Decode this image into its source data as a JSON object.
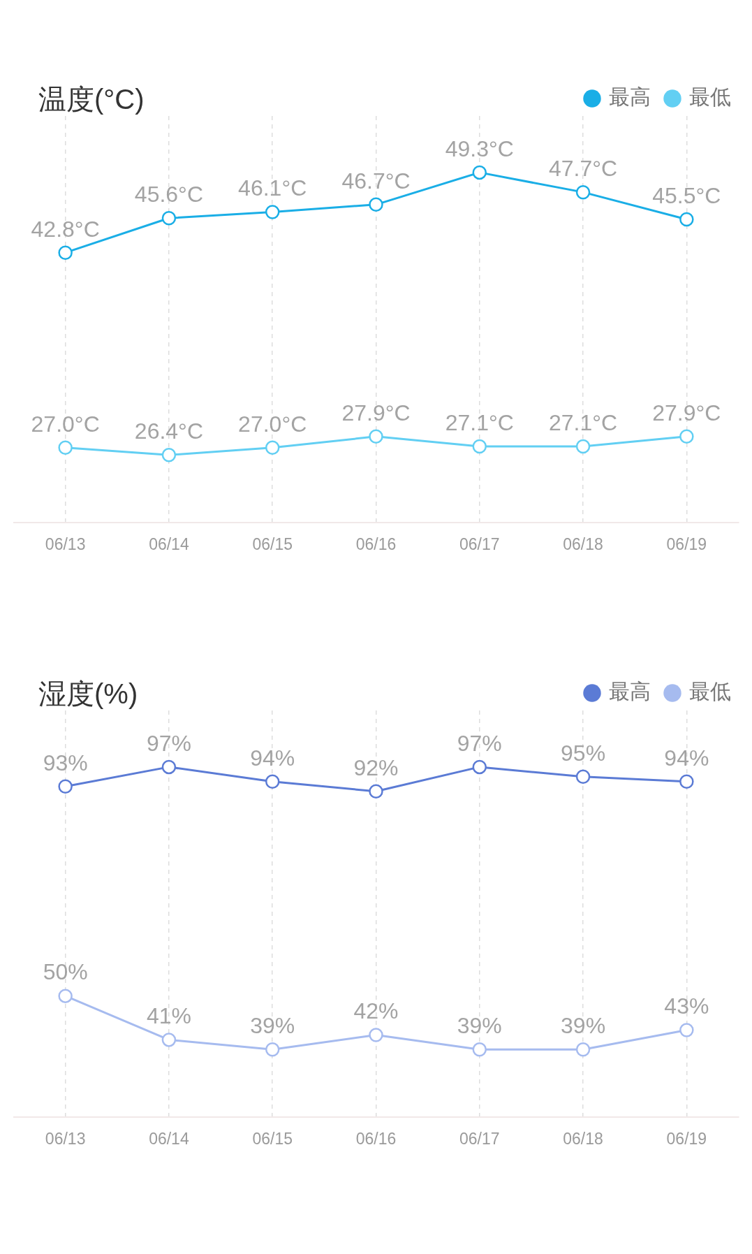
{
  "chart_data": [
    {
      "type": "line",
      "title": "温度(°C)",
      "categories": [
        "06/13",
        "06/14",
        "06/15",
        "06/16",
        "06/17",
        "06/18",
        "06/19"
      ],
      "series": [
        {
          "name": "最高",
          "color": "#1aaee6",
          "values": [
            42.8,
            45.6,
            46.1,
            46.7,
            49.3,
            47.7,
            45.5
          ],
          "value_labels": [
            "42.8°C",
            "45.6°C",
            "46.1°C",
            "46.7°C",
            "49.3°C",
            "47.7°C",
            "45.5°C"
          ]
        },
        {
          "name": "最低",
          "color": "#62cff3",
          "values": [
            27.0,
            26.4,
            27.0,
            27.9,
            27.1,
            27.1,
            27.9
          ],
          "value_labels": [
            "27.0°C",
            "26.4°C",
            "27.0°C",
            "27.9°C",
            "27.1°C",
            "27.1°C",
            "27.9°C"
          ]
        }
      ],
      "legend": "top right",
      "grid": "x",
      "marker": "circle",
      "line_style": "solid",
      "tick_labels": "x"
    },
    {
      "type": "line",
      "title": "湿度(%)",
      "categories": [
        "06/13",
        "06/14",
        "06/15",
        "06/16",
        "06/17",
        "06/18",
        "06/19"
      ],
      "series": [
        {
          "name": "最高",
          "color": "#5b7bd5",
          "values": [
            93,
            97,
            94,
            92,
            97,
            95,
            94
          ],
          "value_labels": [
            "93%",
            "97%",
            "94%",
            "92%",
            "97%",
            "95%",
            "94%"
          ]
        },
        {
          "name": "最低",
          "color": "#a6bbef",
          "values": [
            50,
            41,
            39,
            42,
            39,
            39,
            43
          ],
          "value_labels": [
            "50%",
            "41%",
            "39%",
            "42%",
            "39%",
            "39%",
            "43%"
          ]
        }
      ],
      "legend": "top right",
      "grid": "x",
      "marker": "circle",
      "line_style": "solid",
      "tick_labels": "x"
    }
  ]
}
